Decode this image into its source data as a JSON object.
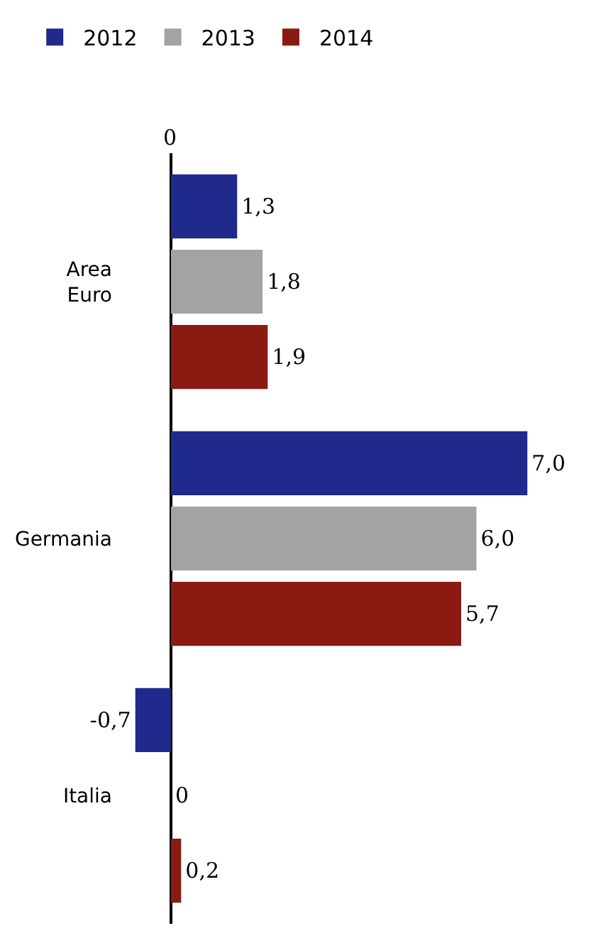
{
  "chart_data": {
    "type": "bar",
    "orientation": "horizontal",
    "categories": [
      "Area Euro",
      "Germania",
      "Italia"
    ],
    "series": [
      {
        "name": "2012",
        "color": "#1f2a8c",
        "values": [
          1.3,
          7.0,
          -0.7
        ],
        "value_labels": [
          "1,3",
          "7,0",
          "-0,7"
        ]
      },
      {
        "name": "2013",
        "color": "#a3a3a3",
        "values": [
          1.8,
          6.0,
          0
        ],
        "value_labels": [
          "1,8",
          "6,0",
          "0"
        ]
      },
      {
        "name": "2014",
        "color": "#8a1a12",
        "values": [
          1.9,
          5.7,
          0.2
        ],
        "value_labels": [
          "1,9",
          "5,7",
          "0,2"
        ]
      }
    ],
    "annotations": [
      "0"
    ],
    "legend": "top left"
  }
}
